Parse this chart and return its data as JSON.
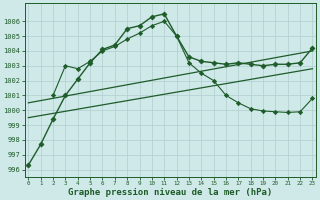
{
  "bg_color": "#cfe8e8",
  "grid_color": "#b0cece",
  "line_color": "#1e5c2a",
  "xlabel": "Graphe pression niveau de la mer (hPa)",
  "xlabel_fontsize": 6.5,
  "ylim": [
    995.5,
    1007.2
  ],
  "xlim": [
    -0.3,
    23.3
  ],
  "yticks": [
    996,
    997,
    998,
    999,
    1000,
    1001,
    1002,
    1003,
    1004,
    1005,
    1006
  ],
  "xticks": [
    0,
    1,
    2,
    3,
    4,
    5,
    6,
    7,
    8,
    9,
    10,
    11,
    12,
    13,
    14,
    15,
    16,
    17,
    18,
    19,
    20,
    21,
    22,
    23
  ],
  "series1_x": [
    0,
    1,
    2,
    3,
    4,
    5,
    6,
    7,
    8,
    9,
    10,
    11,
    12,
    13,
    14,
    15,
    16,
    17,
    18,
    19,
    20,
    21,
    22,
    23
  ],
  "series1_y": [
    996.3,
    997.7,
    999.4,
    1001.0,
    1002.1,
    1003.2,
    1004.1,
    1004.4,
    1005.5,
    1005.7,
    1006.3,
    1006.5,
    1005.0,
    1003.6,
    1003.3,
    1003.2,
    1003.1,
    1003.2,
    1003.1,
    1003.0,
    1003.1,
    1003.1,
    1003.2,
    1004.2
  ],
  "series2_x": [
    2,
    3,
    4,
    5,
    6,
    7,
    8,
    9,
    10,
    11,
    12,
    13,
    14,
    15,
    16,
    17,
    18,
    19,
    20,
    21,
    22,
    23
  ],
  "series2_y": [
    1001.0,
    1003.0,
    1002.8,
    1003.3,
    1004.0,
    1004.3,
    1004.8,
    1005.2,
    1005.7,
    1006.0,
    1005.0,
    1003.2,
    1002.5,
    1002.0,
    1001.0,
    1000.5,
    1000.1,
    999.95,
    999.9,
    999.85,
    999.9,
    1000.8
  ],
  "series3_x": [
    0,
    23
  ],
  "series3_y": [
    1000.5,
    1004.0
  ],
  "series4_x": [
    0,
    23
  ],
  "series4_y": [
    999.5,
    1002.8
  ]
}
